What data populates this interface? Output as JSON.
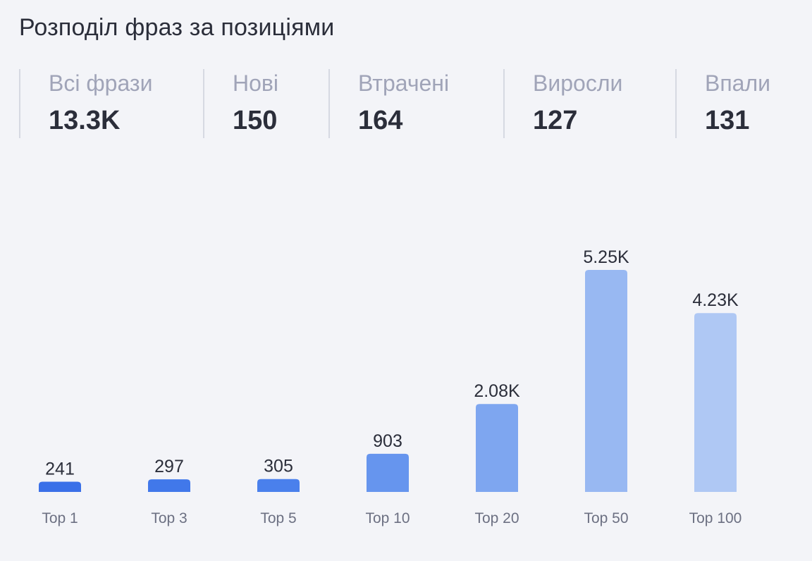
{
  "title": "Розподіл фраз за позиціями",
  "stats": [
    {
      "label": "Всі фрази",
      "value": "13.3K"
    },
    {
      "label": "Нові",
      "value": "150"
    },
    {
      "label": "Втрачені",
      "value": "164"
    },
    {
      "label": "Виросли",
      "value": "127"
    },
    {
      "label": "Впали",
      "value": "131"
    }
  ],
  "chart_data": {
    "type": "bar",
    "title": "",
    "xlabel": "",
    "ylabel": "",
    "categories": [
      "Top 1",
      "Top 3",
      "Top 5",
      "Top 10",
      "Top 20",
      "Top 50",
      "Top 100"
    ],
    "values": [
      241,
      297,
      305,
      903,
      2080,
      5250,
      4230
    ],
    "value_labels": [
      "241",
      "297",
      "305",
      "903",
      "2.08K",
      "5.25K",
      "4.23K"
    ],
    "colors": [
      "#3a70e8",
      "#4178ea",
      "#4a80ec",
      "#6695ee",
      "#7ea6f0",
      "#98b8f2",
      "#afc8f4"
    ],
    "ylim": [
      0,
      5250
    ],
    "grid": false,
    "legend": "none"
  }
}
